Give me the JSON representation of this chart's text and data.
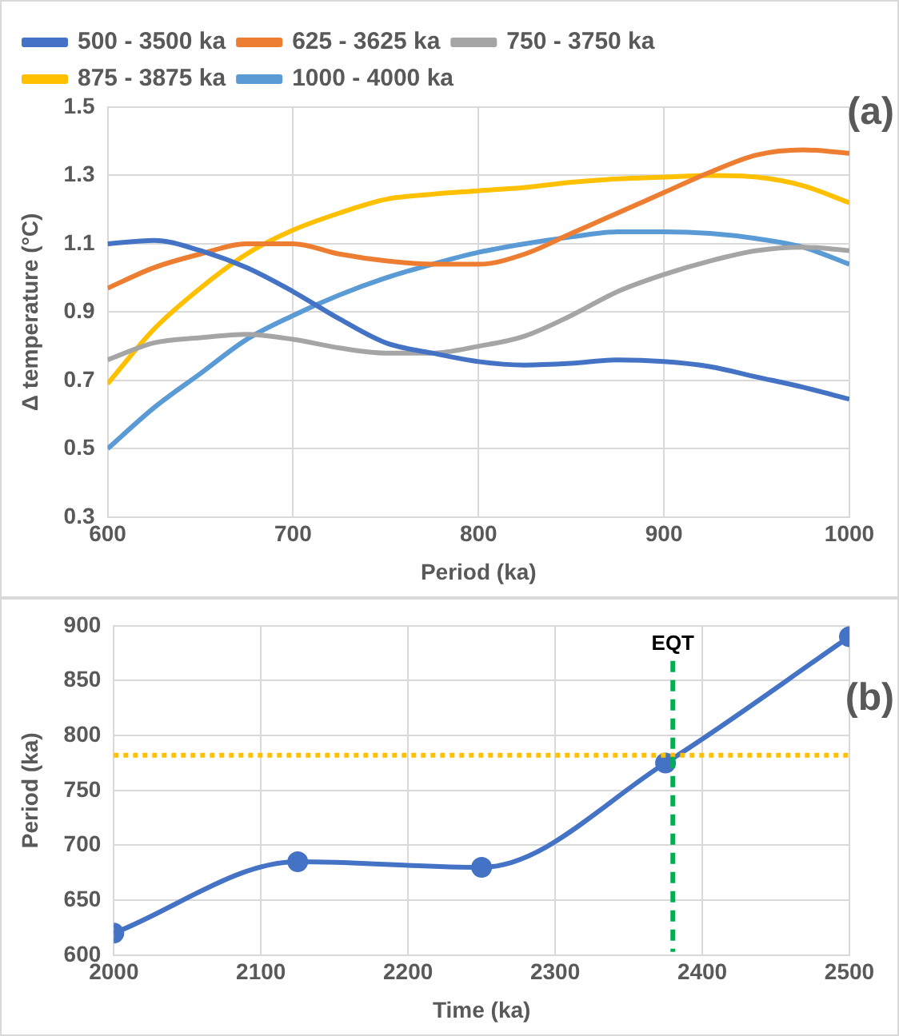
{
  "chart_data": [
    {
      "type": "line",
      "xlabel": "Period (ka)",
      "ylabel": "Δ temperature (°C)",
      "annotations": [
        "(a)"
      ],
      "x": [
        600,
        625,
        650,
        675,
        700,
        725,
        750,
        775,
        800,
        825,
        850,
        875,
        900,
        925,
        950,
        975,
        1000
      ],
      "xlim": [
        600,
        1000
      ],
      "xticks": [
        600,
        700,
        800,
        900,
        1000
      ],
      "ylim": [
        0.3,
        1.5
      ],
      "yticks": [
        0.3,
        0.5,
        0.7,
        0.9,
        1.1,
        1.3,
        1.5
      ],
      "grid": true,
      "legend": "top",
      "marker": "none",
      "series": [
        {
          "name": "500 - 3500 ka",
          "color": "#4472c4",
          "values": [
            1.1,
            1.11,
            1.08,
            1.03,
            0.96,
            0.88,
            0.81,
            0.78,
            0.755,
            0.745,
            0.75,
            0.76,
            0.755,
            0.74,
            0.71,
            0.68,
            0.645
          ]
        },
        {
          "name": "625 - 3625 ka",
          "color": "#ed7d31",
          "values": [
            0.97,
            1.03,
            1.07,
            1.1,
            1.1,
            1.07,
            1.05,
            1.04,
            1.04,
            1.07,
            1.13,
            1.19,
            1.25,
            1.31,
            1.36,
            1.375,
            1.365
          ]
        },
        {
          "name": "750 - 3750 ka",
          "color": "#a5a5a5",
          "values": [
            0.76,
            0.81,
            0.825,
            0.835,
            0.82,
            0.795,
            0.78,
            0.78,
            0.8,
            0.83,
            0.89,
            0.96,
            1.01,
            1.05,
            1.08,
            1.09,
            1.08
          ]
        },
        {
          "name": "875 - 3875 ka",
          "color": "#ffc000",
          "values": [
            0.69,
            0.85,
            0.97,
            1.07,
            1.14,
            1.19,
            1.23,
            1.245,
            1.255,
            1.265,
            1.28,
            1.29,
            1.295,
            1.3,
            1.295,
            1.27,
            1.22
          ]
        },
        {
          "name": "1000 - 4000 ka",
          "color": "#5b9bd5",
          "values": [
            0.5,
            0.62,
            0.72,
            0.82,
            0.89,
            0.95,
            1.0,
            1.04,
            1.075,
            1.1,
            1.12,
            1.135,
            1.135,
            1.13,
            1.115,
            1.09,
            1.04
          ]
        }
      ]
    },
    {
      "type": "line",
      "xlabel": "Time (ka)",
      "ylabel": "Period (ka)",
      "annotations": [
        "(b)"
      ],
      "x": [
        2000,
        2125,
        2250,
        2375,
        2500
      ],
      "xlim": [
        2000,
        2500
      ],
      "xticks": [
        2000,
        2100,
        2200,
        2300,
        2400,
        2500
      ],
      "ylim": [
        600,
        900
      ],
      "yticks": [
        600,
        650,
        700,
        750,
        800,
        850,
        900
      ],
      "grid": true,
      "legend": false,
      "marker": "circle",
      "series": [
        {
          "color": "#4472c4",
          "values": [
            620,
            685,
            680,
            775,
            890
          ]
        }
      ],
      "ref_lines": [
        {
          "axis": "y",
          "value": 782,
          "color": "#ffc000",
          "line_style": "dotted"
        },
        {
          "axis": "x",
          "value": 2380,
          "label": "EQT",
          "color": "#00b050",
          "line_style": "dashed"
        }
      ]
    }
  ]
}
